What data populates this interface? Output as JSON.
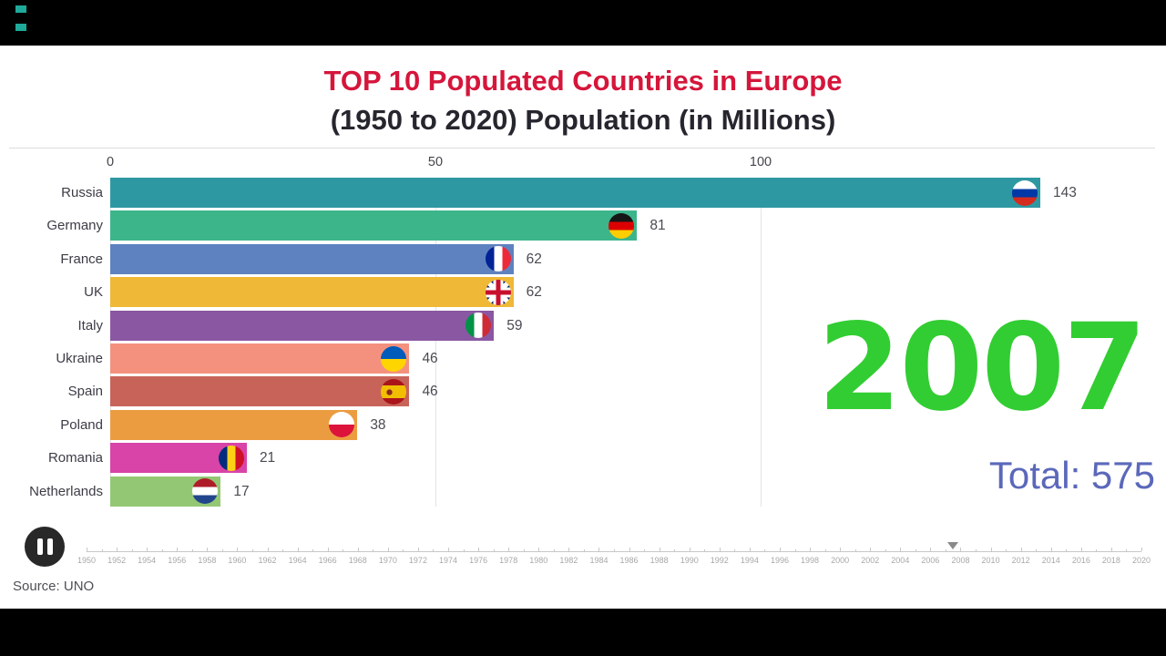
{
  "page": {
    "background": "#000000",
    "canvas": "#ffffff",
    "corner_marks_color": "#1fa99b"
  },
  "header": {
    "title": "TOP 10 Populated Countries in Europe",
    "subtitle": "(1950 to 2020) Population (in Millions)",
    "title_color": "#d5163b",
    "subtitle_color": "#26262e"
  },
  "chart_data": {
    "type": "bar",
    "orientation": "horizontal",
    "title": "TOP 10 Populated Countries in Europe",
    "subtitle": "(1950 to 2020) Population (in Millions)",
    "xlabel": "Population (in Millions)",
    "xlim": [
      0,
      160
    ],
    "axis_ticks": [
      0,
      50,
      100
    ],
    "grid": true,
    "categories": [
      "Russia",
      "Germany",
      "France",
      "UK",
      "Italy",
      "Ukraine",
      "Spain",
      "Poland",
      "Romania",
      "Netherlands"
    ],
    "values": [
      143,
      81,
      62,
      62,
      59,
      46,
      46,
      38,
      21,
      17
    ],
    "bars": [
      {
        "label": "Russia",
        "value": 143,
        "color": "#2e98a2",
        "flag": {
          "kind": "h",
          "colors": [
            "#ffffff",
            "#0039a6",
            "#d52b1e"
          ]
        }
      },
      {
        "label": "Germany",
        "value": 81,
        "color": "#3cb58b",
        "flag": {
          "kind": "h",
          "colors": [
            "#161616",
            "#dd0000",
            "#ffce00"
          ]
        }
      },
      {
        "label": "France",
        "value": 62,
        "color": "#5e82c0",
        "flag": {
          "kind": "v",
          "colors": [
            "#002395",
            "#ffffff",
            "#ed2939"
          ]
        }
      },
      {
        "label": "UK",
        "value": 62,
        "color": "#efb836",
        "flag": {
          "kind": "uk",
          "colors": [
            "#012169",
            "#ffffff",
            "#c8102e"
          ]
        }
      },
      {
        "label": "Italy",
        "value": 59,
        "color": "#8a57a3",
        "flag": {
          "kind": "v",
          "colors": [
            "#009246",
            "#ffffff",
            "#ce2b37"
          ]
        }
      },
      {
        "label": "Ukraine",
        "value": 46,
        "color": "#f4917e",
        "flag": {
          "kind": "h",
          "colors": [
            "#005bbb",
            "#ffd500"
          ]
        }
      },
      {
        "label": "Spain",
        "value": 46,
        "color": "#c8635a",
        "flag": {
          "kind": "h",
          "colors": [
            "#aa151b",
            "#f1bf00",
            "#aa151b"
          ],
          "weights": [
            25,
            50,
            25
          ],
          "emblem": "#8d2a1f"
        }
      },
      {
        "label": "Poland",
        "value": 38,
        "color": "#ec9c40",
        "flag": {
          "kind": "h",
          "colors": [
            "#ffffff",
            "#dc143c"
          ]
        }
      },
      {
        "label": "Romania",
        "value": 21,
        "color": "#d844a8",
        "flag": {
          "kind": "v",
          "colors": [
            "#002b7f",
            "#fcd116",
            "#ce1126"
          ]
        }
      },
      {
        "label": "Netherlands",
        "value": 17,
        "color": "#93c774",
        "flag": {
          "kind": "h",
          "colors": [
            "#ae1c28",
            "#ffffff",
            "#21468b"
          ]
        }
      }
    ],
    "year": "2007",
    "year_color": "#32cd32",
    "total_label": "Total: 575",
    "total_value": 575,
    "total_color": "#5b68ba"
  },
  "timeline": {
    "start": 1950,
    "end": 2020,
    "label_step": 2,
    "labels": [
      "1950",
      "1952",
      "1954",
      "1956",
      "1958",
      "1960",
      "1962",
      "1964",
      "1966",
      "1968",
      "1970",
      "1972",
      "1974",
      "1976",
      "1978",
      "1980",
      "1982",
      "1984",
      "1986",
      "1988",
      "1990",
      "1992",
      "1994",
      "1996",
      "1998",
      "2000",
      "2002",
      "2004",
      "2006",
      "2008",
      "2010",
      "2012",
      "2014",
      "2016",
      "2018",
      "2020"
    ],
    "playhead_year": 2007.5
  },
  "controls": {
    "pause_button": "pause"
  },
  "footer": {
    "source": "Source: UNO"
  }
}
